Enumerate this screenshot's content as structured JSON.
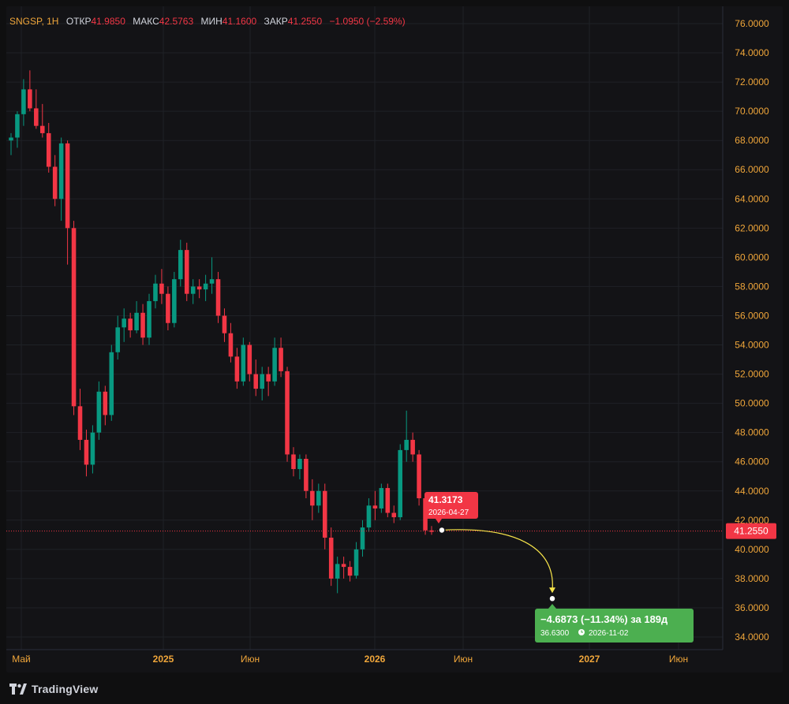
{
  "legend": {
    "symbol": "SNGSP, 1H",
    "open_label": "ОТКР",
    "open": "41.9850",
    "high_label": "МАКС",
    "high": "42.5763",
    "low_label": "МИН",
    "low": "41.1600",
    "close_label": "ЗАКР",
    "close": "41.2550",
    "change": "−1.0950 (−2.59%)"
  },
  "price_tag": {
    "value": "41.2550",
    "color": "#f23645"
  },
  "marker_tag": {
    "value": "41.3173",
    "date": "2026-04-27",
    "color": "#f23645"
  },
  "forecast_box": {
    "line1": "−4.6873 (−11.34%) за 189д",
    "line2_price": "36.6300",
    "line2_date": "2026-11-02",
    "color": "#4caf50",
    "icon": "clock-icon"
  },
  "branding": "TradingView",
  "chart_data": {
    "type": "candlestick",
    "symbol": "SNGSP",
    "y_ticks": [
      "76.0000",
      "74.0000",
      "72.0000",
      "70.0000",
      "68.0000",
      "66.0000",
      "64.0000",
      "62.0000",
      "60.0000",
      "58.0000",
      "56.0000",
      "54.0000",
      "52.0000",
      "50.0000",
      "48.0000",
      "46.0000",
      "44.0000",
      "42.0000",
      "40.0000",
      "38.0000",
      "36.0000",
      "34.0000"
    ],
    "ylim": [
      33.2,
      77.2
    ],
    "x_labels": [
      "Май",
      "2025",
      "Июн",
      "2026",
      "Июн",
      "2027",
      "Июн"
    ],
    "x_label_bold": [
      false,
      true,
      false,
      true,
      false,
      true,
      false
    ],
    "last_price": 41.255,
    "forecast": {
      "from_price": 41.3173,
      "from_date": "2026-04-27",
      "to_price": 36.63,
      "to_date": "2026-11-02"
    },
    "up_color": "#089981",
    "down_color": "#f23645",
    "candles": [
      [
        68.0,
        68.5,
        67.0,
        68.2
      ],
      [
        68.2,
        70.0,
        67.5,
        69.8
      ],
      [
        69.8,
        72.2,
        69.0,
        71.5
      ],
      [
        71.5,
        72.8,
        70.0,
        70.2
      ],
      [
        70.2,
        71.5,
        68.8,
        69.0
      ],
      [
        69.0,
        70.5,
        68.2,
        68.5
      ],
      [
        68.5,
        69.2,
        65.8,
        66.2
      ],
      [
        66.2,
        67.0,
        63.5,
        64.0
      ],
      [
        64.0,
        68.2,
        62.5,
        67.8
      ],
      [
        67.8,
        68.0,
        59.5,
        62.0
      ],
      [
        62.0,
        62.5,
        49.2,
        49.8
      ],
      [
        49.8,
        51.0,
        46.8,
        47.5
      ],
      [
        47.5,
        48.2,
        45.0,
        45.8
      ],
      [
        45.8,
        48.5,
        45.2,
        48.0
      ],
      [
        48.0,
        51.5,
        47.5,
        50.8
      ],
      [
        50.8,
        51.2,
        48.5,
        49.2
      ],
      [
        49.2,
        54.0,
        48.8,
        53.5
      ],
      [
        53.5,
        56.0,
        53.0,
        55.2
      ],
      [
        55.2,
        56.5,
        54.2,
        55.8
      ],
      [
        55.8,
        56.2,
        54.5,
        55.0
      ],
      [
        55.0,
        57.0,
        54.8,
        56.2
      ],
      [
        56.2,
        56.8,
        54.0,
        54.5
      ],
      [
        54.5,
        57.5,
        54.0,
        57.0
      ],
      [
        57.0,
        58.8,
        56.5,
        58.2
      ],
      [
        58.2,
        59.2,
        56.8,
        57.5
      ],
      [
        57.5,
        58.0,
        55.0,
        55.5
      ],
      [
        55.5,
        59.0,
        55.2,
        58.5
      ],
      [
        58.5,
        61.2,
        58.0,
        60.5
      ],
      [
        60.5,
        61.0,
        57.0,
        57.5
      ],
      [
        57.5,
        58.5,
        56.8,
        58.0
      ],
      [
        58.0,
        58.5,
        57.2,
        57.8
      ],
      [
        57.8,
        58.8,
        57.0,
        58.2
      ],
      [
        58.2,
        60.0,
        57.5,
        58.5
      ],
      [
        58.5,
        59.0,
        55.5,
        56.0
      ],
      [
        56.0,
        56.5,
        54.2,
        54.8
      ],
      [
        54.8,
        55.5,
        52.8,
        53.2
      ],
      [
        53.2,
        53.8,
        51.0,
        51.5
      ],
      [
        51.5,
        54.5,
        51.2,
        54.0
      ],
      [
        54.0,
        54.2,
        51.5,
        52.0
      ],
      [
        52.0,
        53.0,
        50.5,
        51.0
      ],
      [
        51.0,
        52.5,
        50.2,
        52.0
      ],
      [
        52.0,
        52.5,
        50.5,
        51.5
      ],
      [
        51.5,
        54.5,
        51.2,
        53.8
      ],
      [
        53.8,
        54.5,
        51.8,
        52.2
      ],
      [
        52.2,
        52.5,
        46.0,
        46.5
      ],
      [
        46.5,
        47.0,
        45.0,
        45.5
      ],
      [
        45.5,
        46.5,
        44.8,
        46.2
      ],
      [
        46.2,
        46.5,
        43.5,
        44.0
      ],
      [
        44.0,
        44.8,
        42.0,
        43.0
      ],
      [
        43.0,
        44.5,
        42.5,
        44.0
      ],
      [
        44.0,
        44.5,
        40.0,
        40.8
      ],
      [
        40.8,
        41.5,
        37.5,
        38.0
      ],
      [
        38.0,
        39.5,
        37.0,
        39.0
      ],
      [
        39.0,
        39.5,
        38.0,
        38.8
      ],
      [
        38.8,
        39.2,
        37.8,
        38.2
      ],
      [
        38.2,
        40.5,
        38.0,
        40.0
      ],
      [
        40.0,
        42.0,
        39.5,
        41.5
      ],
      [
        41.5,
        43.5,
        41.2,
        43.0
      ],
      [
        43.0,
        44.0,
        42.0,
        42.8
      ],
      [
        42.8,
        44.5,
        42.5,
        44.2
      ],
      [
        44.2,
        44.5,
        42.2,
        42.5
      ],
      [
        42.5,
        43.0,
        41.8,
        42.2
      ],
      [
        42.2,
        47.2,
        42.0,
        46.8
      ],
      [
        46.8,
        49.5,
        46.0,
        47.5
      ],
      [
        47.5,
        48.0,
        46.0,
        46.5
      ],
      [
        46.5,
        46.8,
        43.0,
        43.5
      ],
      [
        43.5,
        43.8,
        41.0,
        41.3
      ],
      [
        41.3,
        41.6,
        41.0,
        41.2
      ]
    ]
  }
}
